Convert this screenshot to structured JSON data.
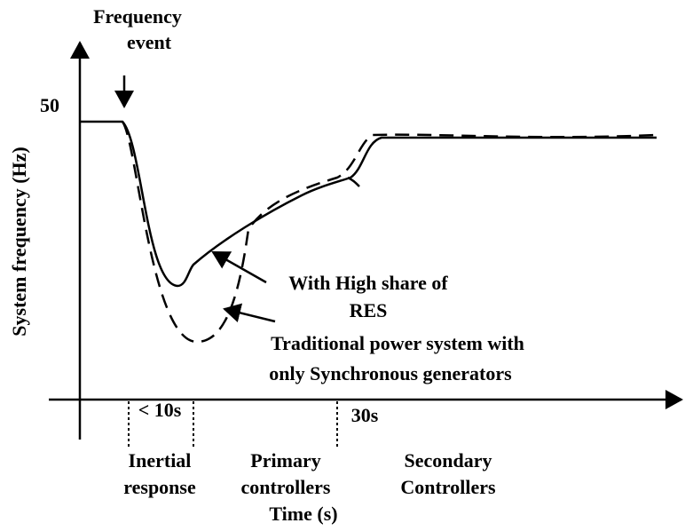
{
  "event_label": [
    "Frequency",
    "event"
  ],
  "y_axis": {
    "label": "System frequency (Hz)",
    "tick": "50"
  },
  "x_axis": {
    "label": "Time (s)",
    "marks": [
      "< 10s",
      "30s"
    ]
  },
  "curves": {
    "res": [
      "With High share of",
      "RES"
    ],
    "traditional": [
      "Traditional power system with",
      "only Synchronous generators"
    ]
  },
  "phases": [
    [
      "Inertial",
      "response"
    ],
    [
      "Primary",
      "controllers"
    ],
    [
      "Secondary",
      "Controllers"
    ]
  ]
}
